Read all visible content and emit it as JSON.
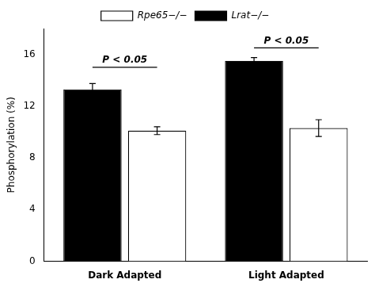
{
  "chart_data": {
    "type": "bar",
    "categories": [
      "Dark Adapted",
      "Light Adapted"
    ],
    "series": [
      {
        "name": "Lrat−/−",
        "color": "#000000",
        "values": [
          13.3,
          15.5
        ],
        "errors": [
          0.45,
          0.25
        ]
      },
      {
        "name": "Rpe65−/−",
        "color": "#ffffff",
        "values": [
          10.1,
          10.3
        ],
        "errors": [
          0.3,
          0.65
        ]
      }
    ],
    "ylabel": "Phosphorylation (%)",
    "ylim": [
      0,
      18
    ],
    "yticks": [
      0,
      4,
      8,
      12,
      16
    ],
    "grid": false,
    "legend": "top",
    "annotations": [
      {
        "text": "P < 0.05",
        "category": "Dark Adapted",
        "y": 15.0
      },
      {
        "text": "P < 0.05",
        "category": "Light Adapted",
        "y": 16.5
      }
    ]
  }
}
